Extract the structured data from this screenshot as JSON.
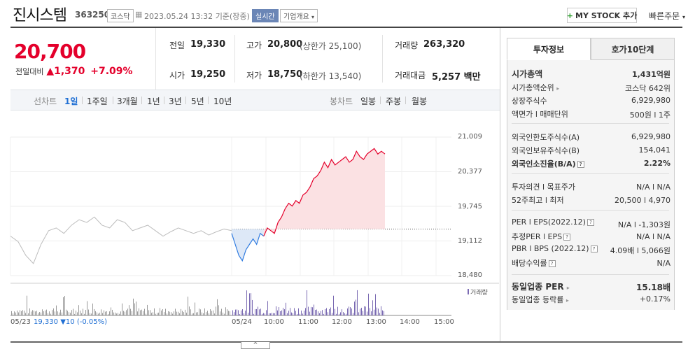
{
  "header": {
    "company": "진시스템",
    "code": "363250",
    "market": "코스닥",
    "date": "2023.05.24 13:32",
    "basis": "기준(장중)",
    "realtime": "실시간",
    "overview": "기업개요",
    "mystock": "MY STOCK 추가",
    "quick_order": "빠른주문"
  },
  "quote": {
    "price": "20,700",
    "change_label": "전일대비",
    "change": "1,370",
    "change_pct": "+7.09%",
    "prev_label": "전일",
    "prev": "19,330",
    "high_label": "고가",
    "high": "20,800",
    "upper_limit": "(상한가 25,100)",
    "volume_label": "거래량",
    "volume": "263,320",
    "open_label": "시가",
    "open": "19,250",
    "low_label": "저가",
    "low": "18,750",
    "lower_limit": "(하한가 13,540)",
    "amount_label": "거래대금",
    "amount": "5,257",
    "amount_unit": "백만"
  },
  "line_tabs": {
    "title": "선차트",
    "items": [
      "1일",
      "1주일",
      "3개월",
      "1년",
      "3년",
      "5년",
      "10년"
    ],
    "active": "1일"
  },
  "candle_tabs": {
    "title": "봉차트",
    "items": [
      "일봉",
      "주봉",
      "월봉"
    ]
  },
  "chart_data": {
    "type": "line",
    "y_ticks": [
      "21,009",
      "20,377",
      "19,745",
      "19,112",
      "18,480"
    ],
    "ylim": [
      18480,
      21009
    ],
    "baseline": 19330,
    "x_ticks": [
      "05/24",
      "10:00",
      "11:00",
      "12:00",
      "13:00",
      "14:00",
      "15:00"
    ],
    "prev_day_label": "05/23",
    "prev_day_close": "19,330",
    "prev_day_change": "10",
    "prev_day_pct": "(-0.05%)",
    "volume_legend": "거래량",
    "prev_series": [
      19200,
      19100,
      18850,
      18700,
      19050,
      19300,
      19350,
      19250,
      19400,
      19500,
      19450,
      19550,
      19400,
      19350,
      19500,
      19450,
      19300,
      19350,
      19400,
      19300,
      19200,
      19280,
      19350,
      19300,
      19250,
      19300,
      19220,
      19280,
      19330,
      19300
    ],
    "today_series": [
      19250,
      19050,
      18850,
      18750,
      18950,
      19050,
      19150,
      19050,
      19250,
      19200,
      19350,
      19300,
      19250,
      19450,
      19550,
      19700,
      19800,
      19750,
      19850,
      19800,
      19950,
      20000,
      20100,
      20250,
      20300,
      20400,
      20550,
      20450,
      20600,
      20500,
      20550,
      20600,
      20650,
      20550,
      20600,
      20750,
      20650,
      20600,
      20700,
      20750,
      20800,
      20700,
      20750,
      20700
    ]
  },
  "side": {
    "tab_info": "투자정보",
    "tab_order": "호가10단계",
    "rows1": [
      {
        "label": "시가총액",
        "value": "1,431억원",
        "bold": true
      },
      {
        "label": "시가총액순위",
        "value": "코스닥 642위"
      },
      {
        "label": "상장주식수",
        "value": "6,929,980"
      },
      {
        "label": "액면가 l 매매단위",
        "value": "500원 l 1주"
      }
    ],
    "rows2": [
      {
        "label": "외국인한도주식수(A)",
        "value": "6,929,980"
      },
      {
        "label": "외국인보유주식수(B)",
        "value": "154,041"
      },
      {
        "label": "외국인소진율(B/A)",
        "value": "2.22%",
        "bold": true
      }
    ],
    "rows3": [
      {
        "label": "투자의견 l 목표주가",
        "value": "N/A l N/A"
      },
      {
        "label": "52주최고 l 최저",
        "value": "20,500 l 4,970"
      }
    ],
    "rows4": [
      {
        "label": "PER l EPS(2022.12)",
        "value": "N/A l -1,303원"
      },
      {
        "label": "추정PER l EPS",
        "value": "N/A l N/A"
      },
      {
        "label": "PBR l BPS (2022.12)",
        "value": "4.09배 l 5,066원"
      },
      {
        "label": "배당수익률",
        "value": "N/A"
      }
    ],
    "rows5": [
      {
        "label": "동일업종 PER",
        "value": "15.18배",
        "bold": true
      },
      {
        "label": "동일업종 등락률",
        "value": "+0.17%"
      }
    ]
  }
}
